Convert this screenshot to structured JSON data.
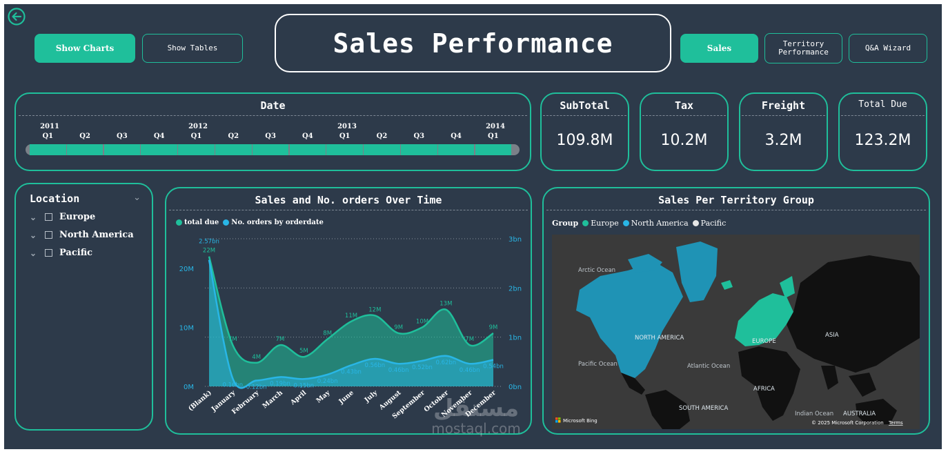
{
  "header": {
    "title": "Sales Performance",
    "back_icon": "arrow-left-circle-icon",
    "left_buttons": [
      {
        "label": "Show Charts",
        "active": true
      },
      {
        "label": "Show Tables",
        "active": false
      }
    ],
    "right_buttons": [
      {
        "label": "Sales",
        "active": true
      },
      {
        "label": "Territory Performance",
        "active": false
      },
      {
        "label": "Q&A Wizard",
        "active": false
      }
    ]
  },
  "date_slicer": {
    "title": "Date",
    "years": [
      "2011",
      "2012",
      "2013",
      "2014"
    ],
    "quarters": [
      "Q1",
      "Q2",
      "Q3",
      "Q4",
      "Q1",
      "Q2",
      "Q3",
      "Q4",
      "Q1",
      "Q2",
      "Q3",
      "Q4",
      "Q1"
    ]
  },
  "kpis": [
    {
      "title": "SubTotal",
      "value": "109.8M"
    },
    {
      "title": "Tax",
      "value": "10.2M"
    },
    {
      "title": "Freight",
      "value": "3.2M"
    },
    {
      "title": "Total Due",
      "value": "123.2M"
    }
  ],
  "location_slicer": {
    "title": "Location",
    "items": [
      "Europe",
      "North America",
      "Pacific"
    ]
  },
  "line_chart": {
    "title": "Sales and No. orders Over Time",
    "legend": [
      "total due",
      "No. orders by orderdate"
    ],
    "left_axis_ticks": [
      "0M",
      "10M",
      "20M"
    ],
    "right_axis_ticks": [
      "0bn",
      "1bn",
      "2bn",
      "3bn"
    ]
  },
  "map": {
    "title": "Sales Per Territory Group",
    "legend_label": "Group",
    "legend": [
      "Europe",
      "North America",
      "Pacific"
    ],
    "labels": {
      "arctic": "Arctic Ocean",
      "north_america": "NORTH AMERICA",
      "europe": "EUROPE",
      "asia": "ASIA",
      "pacific": "Pacific Ocean",
      "atlantic": "Atlantic Ocean",
      "africa": "AFRICA",
      "south_america": "SOUTH AMERICA",
      "indian": "Indian Ocean",
      "australia": "AUSTRALIA"
    },
    "provider": "Microsoft Bing",
    "copyright": "© 2025 Microsoft Corporation",
    "terms": "Terms"
  },
  "watermark": {
    "arabic": "مستقل",
    "latin": "mostaql.com"
  },
  "colors": {
    "background": "#2d3a4a",
    "accent": "#1fbf9b",
    "series_orders": "#29b6e6",
    "pacific": "#e6e6e6"
  },
  "chart_data": {
    "type": "area",
    "categories": [
      "(Blank)",
      "January",
      "February",
      "March",
      "April",
      "May",
      "June",
      "July",
      "August",
      "September",
      "October",
      "November",
      "December"
    ],
    "series": [
      {
        "name": "total due",
        "axis": "left",
        "values": [
          22,
          7,
          4,
          7,
          5,
          8,
          11,
          12,
          9,
          10,
          13,
          7,
          9
        ],
        "labels": [
          "22M",
          "7M",
          "4M",
          "7M",
          "5M",
          "8M",
          "11M",
          "12M",
          "9M",
          "10M",
          "13M",
          "7M",
          "9M"
        ]
      },
      {
        "name": "No. orders by orderdate",
        "axis": "right",
        "values": [
          2.57,
          0.16,
          0.12,
          0.19,
          0.15,
          0.24,
          0.43,
          0.56,
          0.46,
          0.52,
          0.62,
          0.46,
          0.54
        ],
        "labels": [
          "2.57bn",
          "0.16bn",
          "0.12bn",
          "0.19bn",
          "0.15bn",
          "0.24bn",
          "0.43bn",
          "0.56bn",
          "0.46bn",
          "0.52bn",
          "0.62bn",
          "0.46bn",
          "0.54bn"
        ]
      }
    ],
    "ylim_left": [
      0,
      25
    ],
    "ylim_right": [
      0,
      3
    ],
    "grid": true,
    "legend_position": "top-left"
  }
}
